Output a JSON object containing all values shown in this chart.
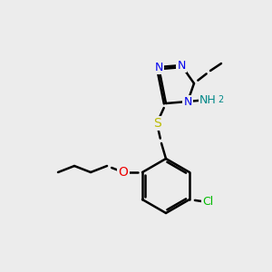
{
  "background_color": "#ececec",
  "bond_color": "#000000",
  "atom_colors": {
    "N": "#0000ee",
    "S": "#bbbb00",
    "O": "#ee0000",
    "Cl": "#00bb00",
    "NH2": "#008888",
    "C": "#000000"
  },
  "figsize": [
    3.0,
    3.0
  ],
  "dpi": 100
}
